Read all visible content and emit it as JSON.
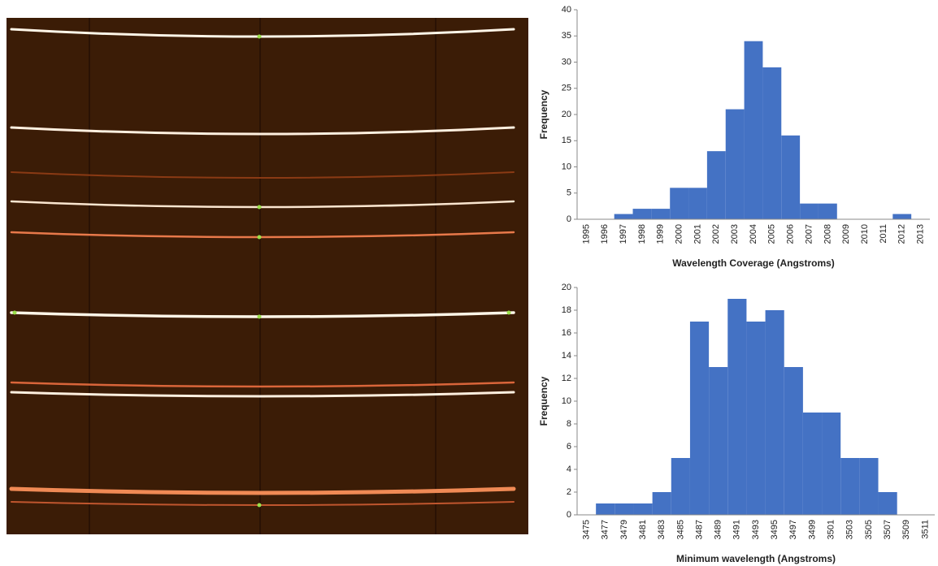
{
  "chart_data": [
    {
      "type": "bar",
      "x_label": "Wavelength Coverage (Angstroms)",
      "y_label": "Frequency",
      "categories": [
        "1995",
        "1996",
        "1997",
        "1998",
        "1999",
        "2000",
        "2001",
        "2002",
        "2003",
        "2004",
        "2005",
        "2006",
        "2007",
        "2008",
        "2009",
        "2010",
        "2011",
        "2012",
        "2013"
      ],
      "values": [
        0,
        0,
        1,
        2,
        2,
        6,
        6,
        13,
        21,
        34,
        29,
        16,
        3,
        3,
        0,
        0,
        0,
        1,
        0
      ],
      "color": "#4472c4",
      "ylim": [
        0,
        40
      ],
      "yticks": [
        0,
        5,
        10,
        15,
        20,
        25,
        30,
        35,
        40
      ]
    },
    {
      "type": "bar",
      "x_label": "Minimum wavelength (Angstroms)",
      "y_label": "Frequency",
      "categories": [
        "3475",
        "3477",
        "3479",
        "3481",
        "3483",
        "3485",
        "3487",
        "3489",
        "3491",
        "3493",
        "3495",
        "3497",
        "3499",
        "3501",
        "3503",
        "3505",
        "3507",
        "3509",
        "3511"
      ],
      "values": [
        0,
        1,
        1,
        1,
        2,
        5,
        17,
        13,
        19,
        17,
        18,
        13,
        9,
        9,
        5,
        5,
        2,
        0,
        0
      ],
      "color": "#4472c4",
      "ylim": [
        0,
        20
      ],
      "yticks": [
        0,
        2,
        4,
        6,
        8,
        10,
        12,
        14,
        16,
        18,
        20
      ]
    }
  ]
}
